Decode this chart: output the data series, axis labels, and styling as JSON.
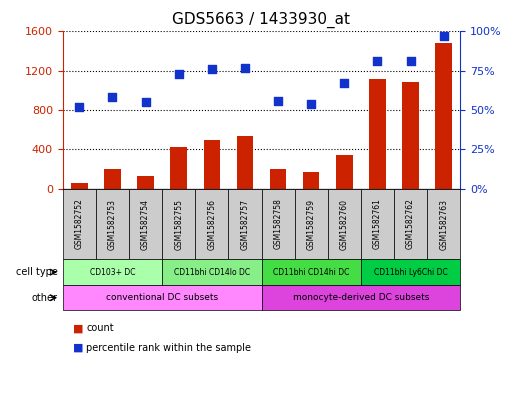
{
  "title": "GDS5663 / 1433930_at",
  "samples": [
    "GSM1582752",
    "GSM1582753",
    "GSM1582754",
    "GSM1582755",
    "GSM1582756",
    "GSM1582757",
    "GSM1582758",
    "GSM1582759",
    "GSM1582760",
    "GSM1582761",
    "GSM1582762",
    "GSM1582763"
  ],
  "counts": [
    55,
    195,
    130,
    420,
    490,
    540,
    195,
    165,
    340,
    1120,
    1090,
    1480
  ],
  "percentiles": [
    52,
    58,
    55,
    73,
    76,
    77,
    56,
    54,
    67,
    81,
    81,
    97
  ],
  "left_ylim": [
    0,
    1600
  ],
  "right_ylim": [
    0,
    100
  ],
  "left_yticks": [
    0,
    400,
    800,
    1200,
    1600
  ],
  "right_yticks": [
    0,
    25,
    50,
    75,
    100
  ],
  "right_yticklabels": [
    "0%",
    "25%",
    "50%",
    "75%",
    "100%"
  ],
  "bar_color": "#cc2200",
  "dot_color": "#1133cc",
  "bar_width": 0.5,
  "cell_type_labels": [
    {
      "label": "CD103+ DC",
      "start": 0,
      "end": 2,
      "color": "#aaffaa"
    },
    {
      "label": "CD11bhi CD14lo DC",
      "start": 3,
      "end": 5,
      "color": "#88ee88"
    },
    {
      "label": "CD11bhi CD14hi DC",
      "start": 6,
      "end": 8,
      "color": "#44dd44"
    },
    {
      "label": "CD11bhi Ly6Chi DC",
      "start": 9,
      "end": 11,
      "color": "#00cc44"
    }
  ],
  "other_labels": [
    {
      "label": "conventional DC subsets",
      "start": 0,
      "end": 5,
      "color": "#ff88ff"
    },
    {
      "label": "monocyte-derived DC subsets",
      "start": 6,
      "end": 11,
      "color": "#dd44dd"
    }
  ],
  "xlabel_row_color": "#cccccc",
  "cell_type_row_label": "cell type",
  "other_row_label": "other",
  "legend_count_label": "count",
  "legend_pct_label": "percentile rank within the sample",
  "background_color": "#ffffff"
}
